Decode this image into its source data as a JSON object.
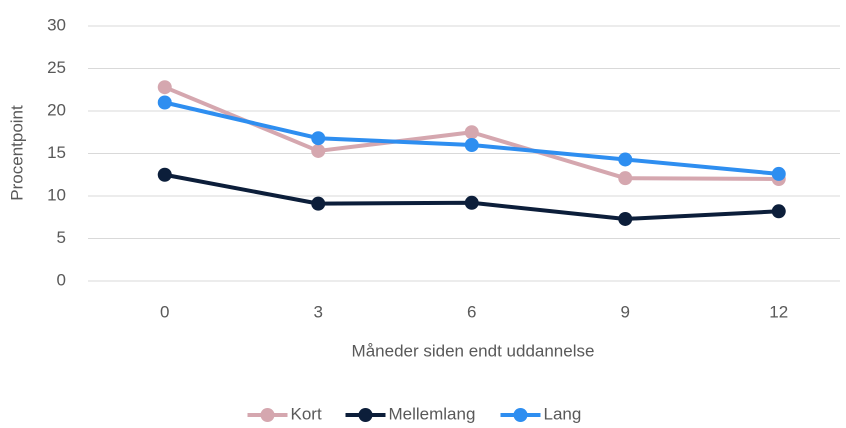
{
  "chart_data": {
    "type": "line",
    "x_label": "Måneder siden endt uddannelse",
    "y_label": "Procentpoint",
    "categories": [
      "0",
      "3",
      "6",
      "9",
      "12"
    ],
    "series": [
      {
        "name": "Kort",
        "color": "#d5a7af",
        "values": [
          22.8,
          15.3,
          17.5,
          12.1,
          12.0
        ]
      },
      {
        "name": "Mellemlang",
        "color": "#0c1e3a",
        "values": [
          12.5,
          9.1,
          9.2,
          7.3,
          8.2
        ]
      },
      {
        "name": "Lang",
        "color": "#2e8ef0",
        "values": [
          21.0,
          16.8,
          16.0,
          14.3,
          12.6
        ]
      }
    ],
    "ylim": [
      0,
      30
    ],
    "yticks": [
      0,
      5,
      10,
      15,
      20,
      25,
      30
    ],
    "grid": true,
    "legend": "bottom"
  }
}
